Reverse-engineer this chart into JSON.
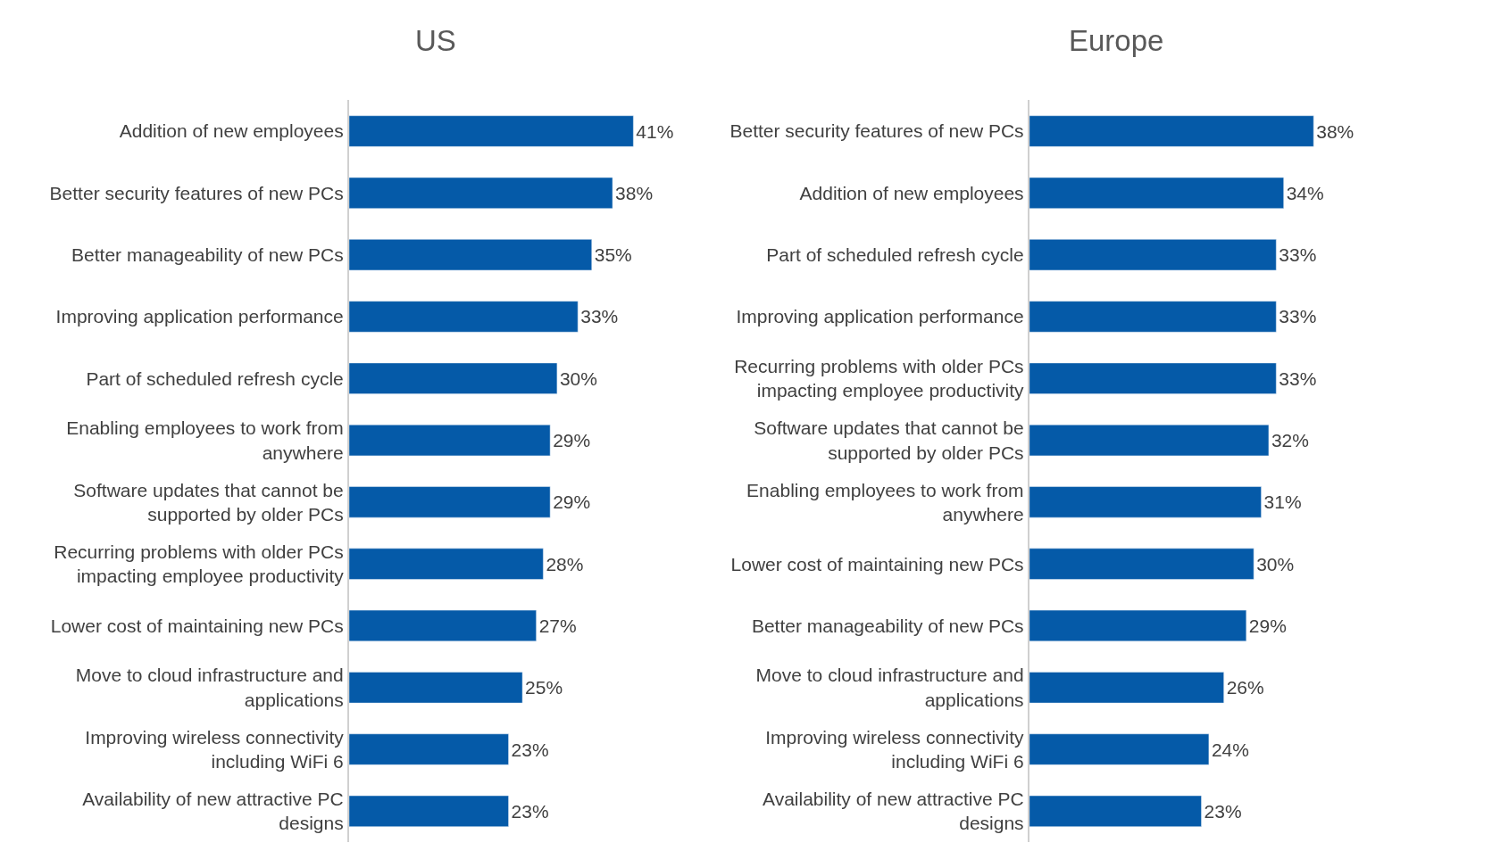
{
  "chart_data": [
    {
      "type": "bar",
      "title": "US",
      "orientation": "horizontal",
      "tick_labels": "y",
      "categories": [
        "Addition of new employees",
        "Better security features of new PCs",
        "Better manageability of new PCs",
        "Improving application performance",
        "Part of scheduled refresh cycle",
        "Enabling employees to work from\nanywhere",
        "Software updates that cannot be\nsupported by older PCs",
        "Recurring problems with older PCs\nimpacting employee productivity",
        "Lower cost of maintaining new PCs",
        "Move to cloud infrastructure and\napplications",
        "Improving wireless connectivity\nincluding WiFi 6",
        "Availability of new attractive PC\ndesigns"
      ],
      "series": [
        {
          "color": "#055aa8",
          "values": [
            41,
            38,
            35,
            33,
            30,
            29,
            29,
            28,
            27,
            25,
            23,
            23
          ],
          "value_labels": [
            "41%",
            "38%",
            "35%",
            "33%",
            "30%",
            "29%",
            "29%",
            "28%",
            "27%",
            "25%",
            "23%",
            "23%"
          ]
        }
      ]
    },
    {
      "type": "bar",
      "title": "Europe",
      "orientation": "horizontal",
      "tick_labels": "y",
      "categories": [
        "Better security features of new PCs",
        "Addition of new employees",
        "Part of scheduled refresh cycle",
        "Improving application performance",
        "Recurring problems with older PCs\nimpacting employee productivity",
        "Software updates that cannot be\nsupported by older PCs",
        "Enabling employees to work from\nanywhere",
        "Lower cost of maintaining new PCs",
        "Better manageability of new PCs",
        "Move to cloud infrastructure and\napplications",
        "Improving wireless connectivity\nincluding WiFi 6",
        "Availability of new attractive PC\ndesigns"
      ],
      "series": [
        {
          "color": "#055aa8",
          "values": [
            38,
            34,
            33,
            33,
            33,
            32,
            31,
            30,
            29,
            26,
            24,
            23
          ],
          "value_labels": [
            "38%",
            "34%",
            "33%",
            "33%",
            "33%",
            "32%",
            "31%",
            "30%",
            "29%",
            "26%",
            "24%",
            "23%"
          ]
        }
      ]
    }
  ]
}
